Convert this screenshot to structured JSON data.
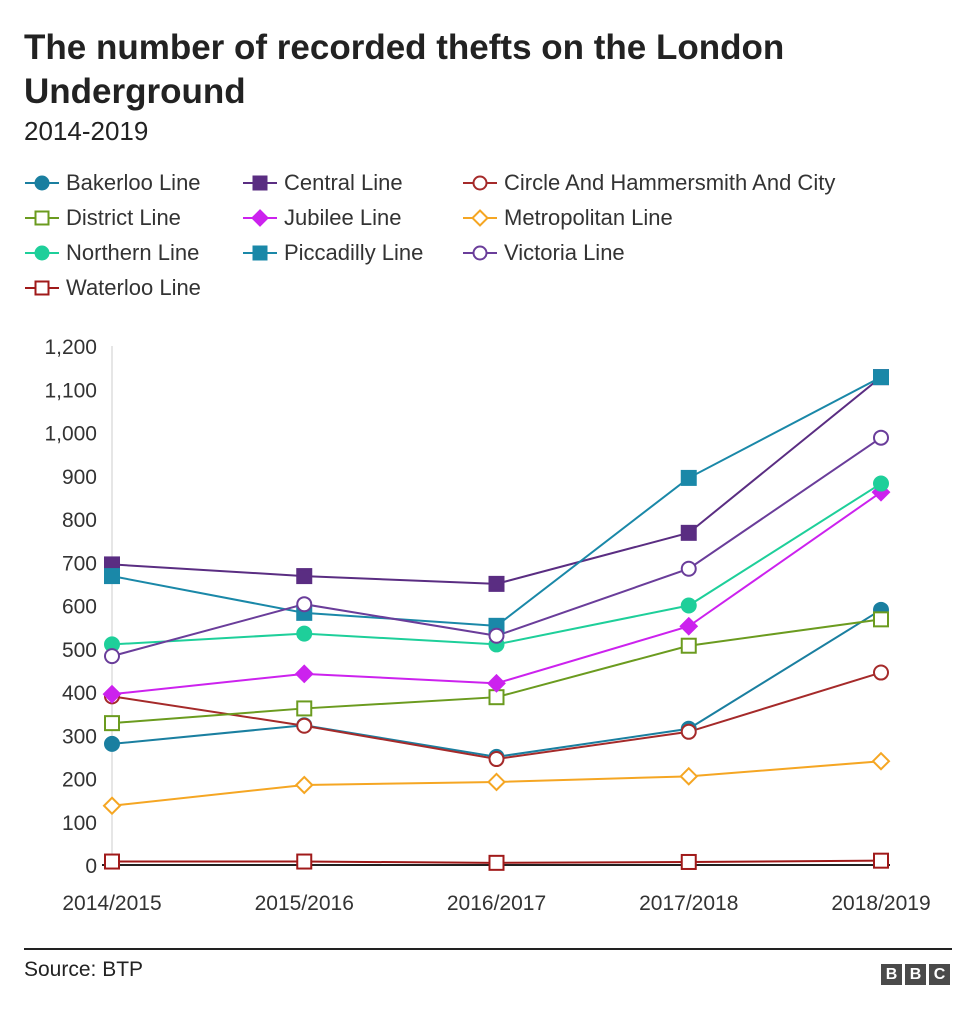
{
  "chart_data": {
    "type": "line",
    "title": "The number of recorded thefts on the London Underground",
    "subtitle": "2014-2019",
    "categories": [
      "2014/2015",
      "2015/2016",
      "2016/2017",
      "2017/2018",
      "2018/2019"
    ],
    "ylim": [
      0,
      1200
    ],
    "yticks": [
      0,
      100,
      200,
      300,
      400,
      500,
      600,
      700,
      800,
      900,
      1000,
      1100,
      1200
    ],
    "ytick_labels": [
      "0",
      "100",
      "200",
      "300",
      "400",
      "500",
      "600",
      "700",
      "800",
      "900",
      "1,000",
      "1,100",
      "1,200"
    ],
    "grid": false,
    "legend_position": "top",
    "series": [
      {
        "name": "Bakerloo Line",
        "color": "#1a7fa0",
        "marker": "circle-filled",
        "values": [
          280,
          323,
          250,
          315,
          590
        ]
      },
      {
        "name": "Central Line",
        "color": "#5a2d82",
        "marker": "square-filled",
        "values": [
          695,
          668,
          650,
          768,
          1128
        ]
      },
      {
        "name": "Circle And Hammersmith And City",
        "color": "#a52a2a",
        "marker": "circle-open",
        "values": [
          390,
          322,
          245,
          308,
          445
        ]
      },
      {
        "name": "District Line",
        "color": "#6b9b1f",
        "marker": "square-open",
        "values": [
          328,
          362,
          388,
          507,
          568
        ]
      },
      {
        "name": "Jubilee Line",
        "color": "#cc22ee",
        "marker": "diamond-filled",
        "values": [
          395,
          442,
          420,
          552,
          862
        ]
      },
      {
        "name": "Metropolitan Line",
        "color": "#f5a623",
        "marker": "diamond-open",
        "values": [
          137,
          185,
          192,
          205,
          240
        ]
      },
      {
        "name": "Northern Line",
        "color": "#1ecf9a",
        "marker": "circle-filled",
        "values": [
          510,
          535,
          510,
          600,
          882
        ]
      },
      {
        "name": "Piccadilly Line",
        "color": "#1a88a8",
        "marker": "square-filled",
        "values": [
          668,
          583,
          553,
          895,
          1128
        ]
      },
      {
        "name": "Victoria Line",
        "color": "#6a3d9a",
        "marker": "circle-open",
        "values": [
          483,
          603,
          530,
          685,
          988
        ]
      },
      {
        "name": "Waterloo Line",
        "color": "#a01a1a",
        "marker": "square-open",
        "values": [
          8,
          8,
          5,
          7,
          10
        ]
      }
    ]
  },
  "footer": {
    "source": "Source: BTP",
    "logo_letters": [
      "B",
      "B",
      "C"
    ]
  }
}
